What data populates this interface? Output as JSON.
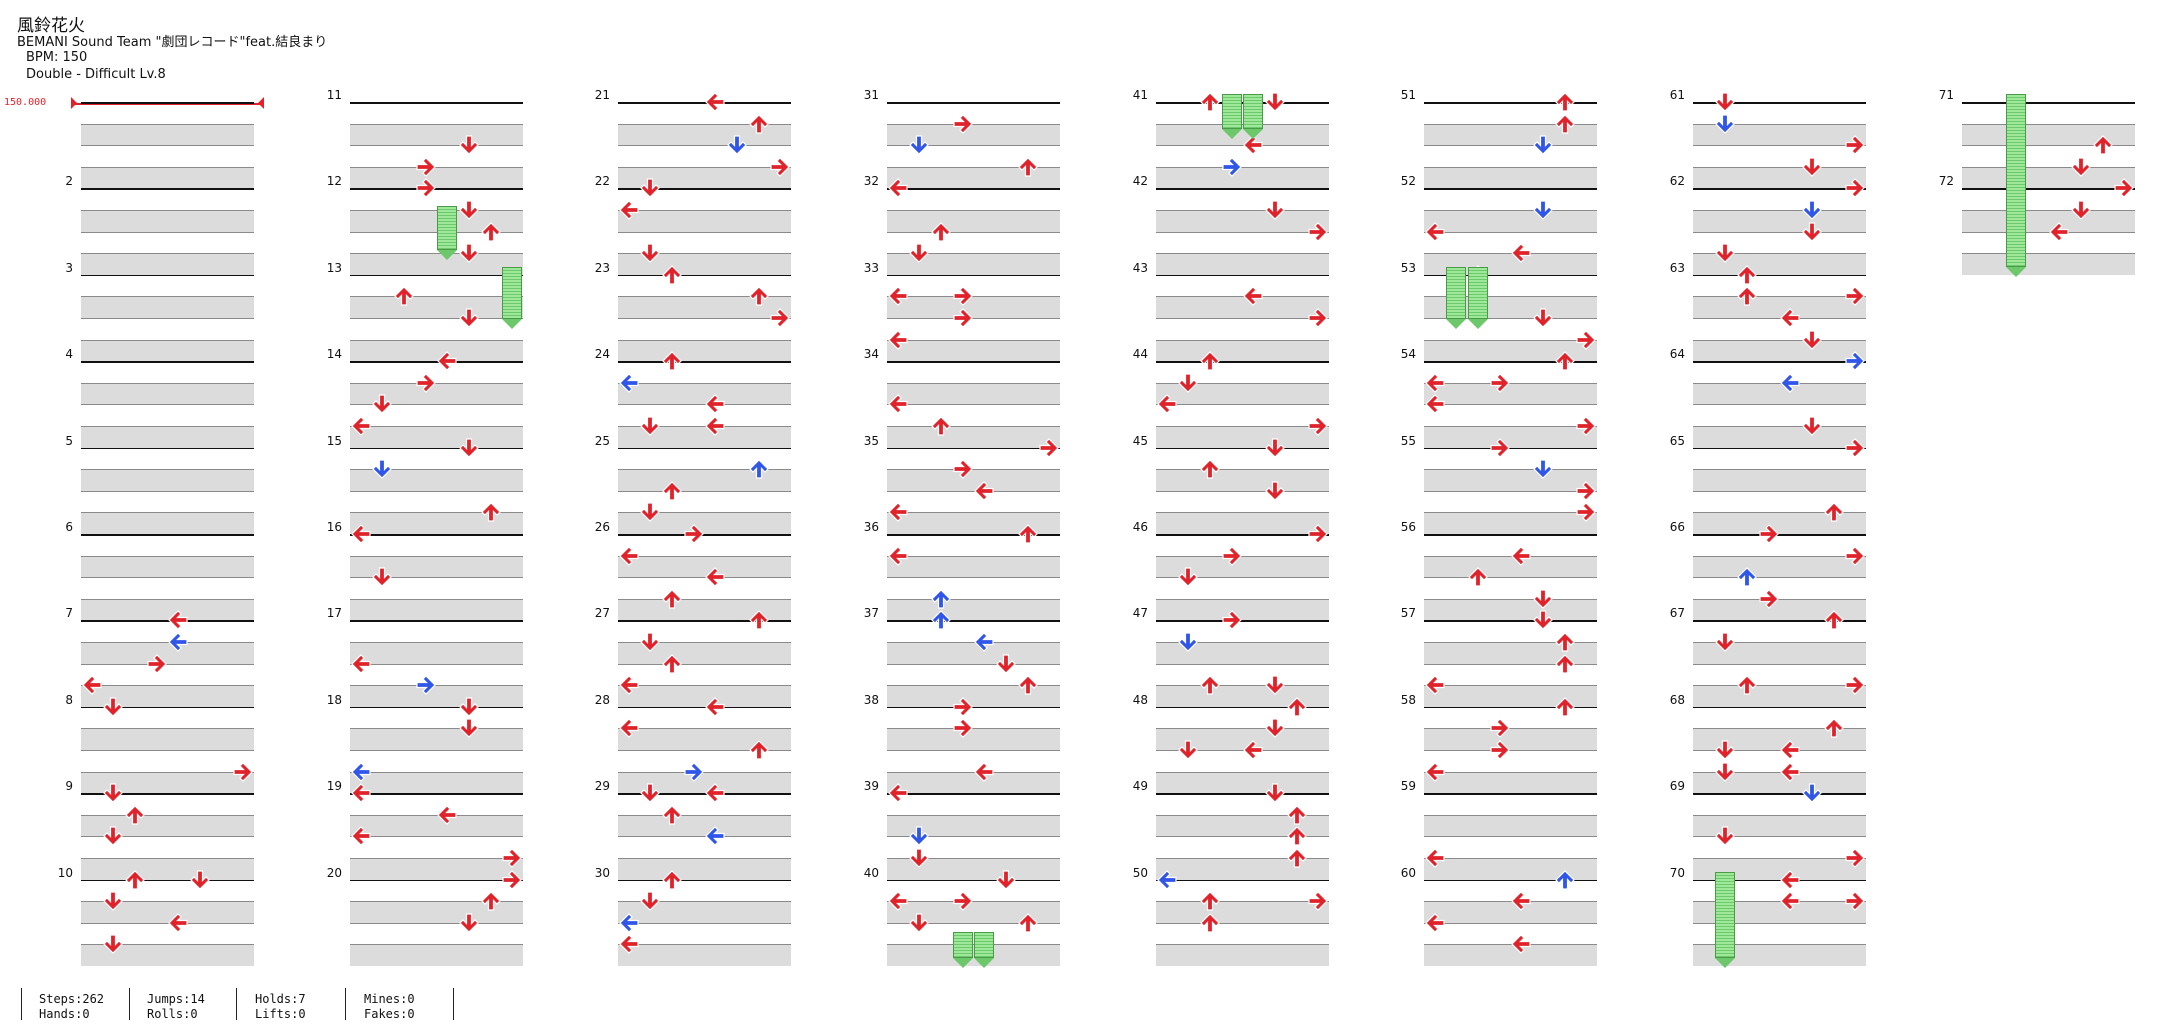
{
  "song": {
    "title": "風鈴花火",
    "artist": "BEMANI Sound Team \"劇団レコード\"feat.結良まり",
    "bpm": "BPM: 150",
    "difficulty": "Double - Difficult  Lv.8",
    "bpm_marker": "150.000"
  },
  "chart": {
    "mode": "dance-double",
    "measures": 72,
    "measures_per_column": 10,
    "first_measure_label": "",
    "colors": {
      "red_note": "#e0232b",
      "blue_note": "#2f56e8",
      "hold": "#8fe08a",
      "band": "#dcdcdc"
    }
  },
  "stats": [
    {
      "a": "Steps:262",
      "b": "Hands:0"
    },
    {
      "a": "Jumps:14",
      "b": "Rolls:0"
    },
    {
      "a": "Holds:7",
      "b": "Lifts:0"
    },
    {
      "a": "Mines:0",
      "b": "Fakes:0"
    }
  ]
}
